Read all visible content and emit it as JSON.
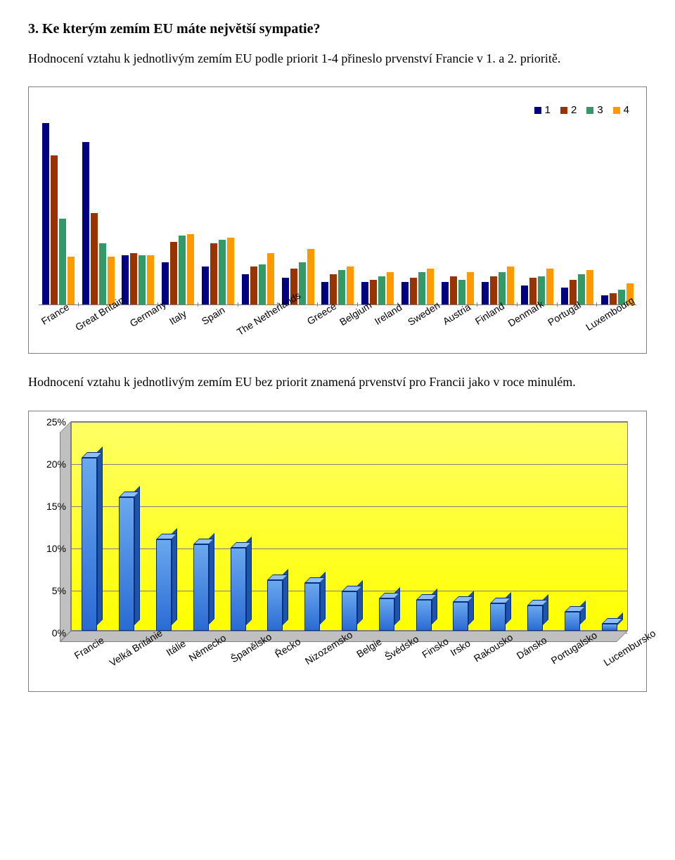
{
  "heading": "3.  Ke kterým zemím EU máte největší sympatie?",
  "intro": "Hodnocení vztahu k jednotlivým zemím EU podle priorit 1-4 přineslo prvenství Francie v 1. a 2. prioritě.",
  "midtext": "Hodnocení vztahu k jednotlivým zemím EU bez priorit znamená prvenství pro Francii jako v roce minulém.",
  "chart1": {
    "type": "bar-grouped",
    "ymax": 100,
    "series_labels": [
      "1",
      "2",
      "3",
      "4"
    ],
    "series_colors": [
      "#000080",
      "#993300",
      "#339966",
      "#ff9900"
    ],
    "label_fontsize": 14,
    "border_color": "#7f7f7f",
    "axis_color": "#808080",
    "categories": [
      "France",
      "Great Britain",
      "Germany",
      "Italy",
      "Spain",
      "The Netherlands",
      "Greece",
      "Belgium",
      "Ireland",
      "Sweden",
      "Austria",
      "Finland",
      "Denmark",
      "Portugal",
      "Luxembourg"
    ],
    "data": [
      [
        95,
        78,
        45,
        25
      ],
      [
        85,
        48,
        32,
        25
      ],
      [
        26,
        27,
        26,
        26
      ],
      [
        22,
        33,
        36,
        37
      ],
      [
        20,
        32,
        34,
        35
      ],
      [
        16,
        20,
        21,
        27
      ],
      [
        14,
        19,
        22,
        29
      ],
      [
        12,
        16,
        18,
        20
      ],
      [
        12,
        13,
        15,
        17
      ],
      [
        12,
        14,
        17,
        19
      ],
      [
        12,
        15,
        13,
        17
      ],
      [
        12,
        15,
        17,
        20
      ],
      [
        10,
        14,
        15,
        19
      ],
      [
        9,
        13,
        16,
        18
      ],
      [
        5,
        6,
        8,
        11
      ]
    ]
  },
  "chart2": {
    "type": "bar-3d",
    "ymax": 25,
    "ytick_step": 5,
    "yticks": [
      "0%",
      "5%",
      "10%",
      "15%",
      "20%",
      "25%"
    ],
    "background_gradient": [
      "#ffff66",
      "#ffff00"
    ],
    "floor_color": "#c0c0c0",
    "bar_gradient": [
      "#6aa8ef",
      "#2a6bd4"
    ],
    "bar_side_color": "#1f54aa",
    "bar_top_color": "#8fbef5",
    "bar_border_color": "#003080",
    "grid_color": "#808080",
    "border_color": "#7f7f7f",
    "label_fontsize": 14,
    "categories": [
      "Francie",
      "Velká Británie",
      "Itálie",
      "Německo",
      "Španělsko",
      "Řecko",
      "Nizozemsko",
      "Belgie",
      "Švédsko",
      "Finsko",
      "Irsko",
      "Rakousko",
      "Dánsko",
      "Portugalsko",
      "Lucembursko"
    ],
    "values": [
      20.5,
      15.8,
      10.8,
      10.2,
      9.8,
      6.0,
      5.6,
      4.6,
      3.8,
      3.6,
      3.4,
      3.2,
      3.0,
      2.2,
      0.8
    ]
  }
}
